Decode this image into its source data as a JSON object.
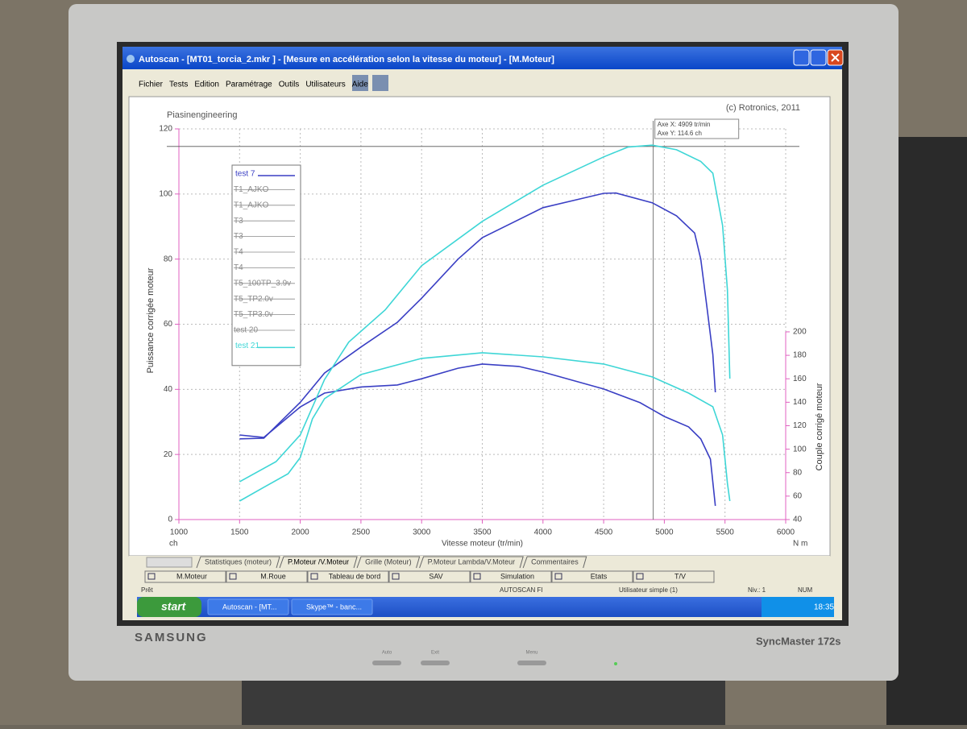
{
  "window": {
    "title": "Autoscan - [MT01_torcia_2.mkr ] - [Mesure en accélération selon la vitesse du moteur] - [M.Moteur]"
  },
  "menu": [
    "Fichier",
    "Tests",
    "Edition",
    "Paramétrage",
    "Outils",
    "Utilisateurs",
    "Aide"
  ],
  "chart_data": {
    "type": "line",
    "header_left": "Piasinengineering",
    "header_right": "(c) Rotronics, 2011",
    "x_label": "Vitesse moteur (tr/min)",
    "y_label": "Puissance corrigée moteur",
    "y2_label": "Couple corrigé moteur",
    "y_unit": "ch",
    "y2_unit": "N m",
    "xlim": [
      1000,
      6000
    ],
    "xticks": [
      1000,
      1500,
      2000,
      2500,
      3000,
      3500,
      4000,
      4500,
      5000,
      5500,
      6000
    ],
    "ylim": [
      0,
      120
    ],
    "yticks": [
      0,
      20,
      40,
      60,
      80,
      100,
      120
    ],
    "y2lim": [
      40,
      373
    ],
    "y2ticks": [
      40,
      60,
      80,
      100,
      120,
      140,
      160,
      180,
      200
    ],
    "grid": true,
    "cursor": {
      "x": 4909,
      "y": 114.6,
      "label_x": "Axe X: 4909 tr/min",
      "label_y": "Axe Y: 114.6 ch"
    },
    "series": [
      {
        "name": "test 7",
        "color": "#3a3fc4",
        "power": {
          "x": [
            1500,
            1700,
            2000,
            2200,
            2500,
            2800,
            3000,
            3300,
            3500,
            4000,
            4500,
            4600,
            4900,
            5100,
            5250,
            5300,
            5350,
            5400,
            5420
          ],
          "values": [
            24.8,
            25,
            36,
            45,
            53,
            60.6,
            68,
            80,
            86.6,
            95.8,
            100.2,
            100.3,
            97.3,
            93.3,
            88,
            80,
            65.6,
            50.7,
            39.1
          ]
        },
        "torque": {
          "axis": "y2",
          "x": [
            1500,
            1700,
            2000,
            2200,
            2500,
            2800,
            3000,
            3300,
            3500,
            3800,
            4000,
            4500,
            4800,
            5000,
            5200,
            5300,
            5380,
            5420
          ],
          "values": [
            112.1,
            110,
            136,
            147.8,
            153,
            154.7,
            160,
            169,
            172.6,
            170.5,
            165.7,
            151.3,
            139.6,
            127.9,
            119,
            108.7,
            91.5,
            51.7
          ]
        }
      },
      {
        "name": "T1_AJKO",
        "color": "#8a8a8a",
        "hidden": true
      },
      {
        "name": "T1_AJKO",
        "color": "#8a8a8a",
        "hidden": true
      },
      {
        "name": "T3",
        "color": "#8a8a8a",
        "hidden": true
      },
      {
        "name": "T3",
        "color": "#8a8a8a",
        "hidden": true
      },
      {
        "name": "T4",
        "color": "#8a8a8a",
        "hidden": true
      },
      {
        "name": "T4",
        "color": "#8a8a8a",
        "hidden": true
      },
      {
        "name": "T5_100TP_3.9v",
        "color": "#8a8a8a",
        "hidden": true
      },
      {
        "name": "T5_TP2.0v",
        "color": "#8a8a8a",
        "hidden": true
      },
      {
        "name": "T5_TP3.0v",
        "color": "#8a8a8a",
        "hidden": true
      },
      {
        "name": "test 20",
        "color": "#8a8a8a",
        "hidden": true
      },
      {
        "name": "test 21",
        "color": "#3ed6d6",
        "power": {
          "x": [
            1500,
            1800,
            2000,
            2200,
            2400,
            2700,
            3000,
            3500,
            4000,
            4500,
            4700,
            4900,
            5100,
            5300,
            5400,
            5480,
            5520,
            5540
          ],
          "values": [
            11.6,
            17.8,
            26,
            43,
            54.5,
            64.4,
            78,
            91.6,
            102.7,
            111.4,
            114.4,
            115,
            113.6,
            110,
            106.4,
            90.3,
            70.5,
            43.3
          ]
        },
        "torque": {
          "axis": "y2",
          "x": [
            1500,
            1700,
            1900,
            2000,
            2100,
            2200,
            2500,
            3000,
            3500,
            4000,
            4500,
            4900,
            5200,
            5400,
            5480,
            5520,
            5540
          ],
          "values": [
            55.8,
            67.5,
            79.1,
            92.9,
            125.8,
            143,
            163.6,
            177.4,
            182.2,
            178.7,
            172.6,
            161.6,
            147.8,
            136.2,
            112.1,
            70.9,
            55.8
          ]
        }
      }
    ]
  },
  "tabs": [
    "Statistiques (moteur)",
    "P.Moteur /V.Moteur",
    "Grille (Moteur)",
    "P.Moteur Lambda/V.Moteur",
    "Commentaires"
  ],
  "active_tab": 1,
  "buttons": [
    "M.Moteur",
    "M.Roue",
    "Tableau de bord",
    "SAV",
    "Simulation",
    "Etats",
    "T/V"
  ],
  "status": [
    "Prêt",
    "AUTOSCAN FI",
    "Utilisateur simple (1)",
    "Niv.: 1",
    "NUM"
  ],
  "taskbar": {
    "start": "start",
    "items": [
      "Autoscan - [MT...",
      "Skype™ - banc..."
    ],
    "clock": "18:35"
  },
  "monitor": {
    "brand": "SAMSUNG",
    "model": "SyncMaster 172s",
    "buttons": [
      "Auto",
      "Exit",
      "Menu"
    ]
  }
}
